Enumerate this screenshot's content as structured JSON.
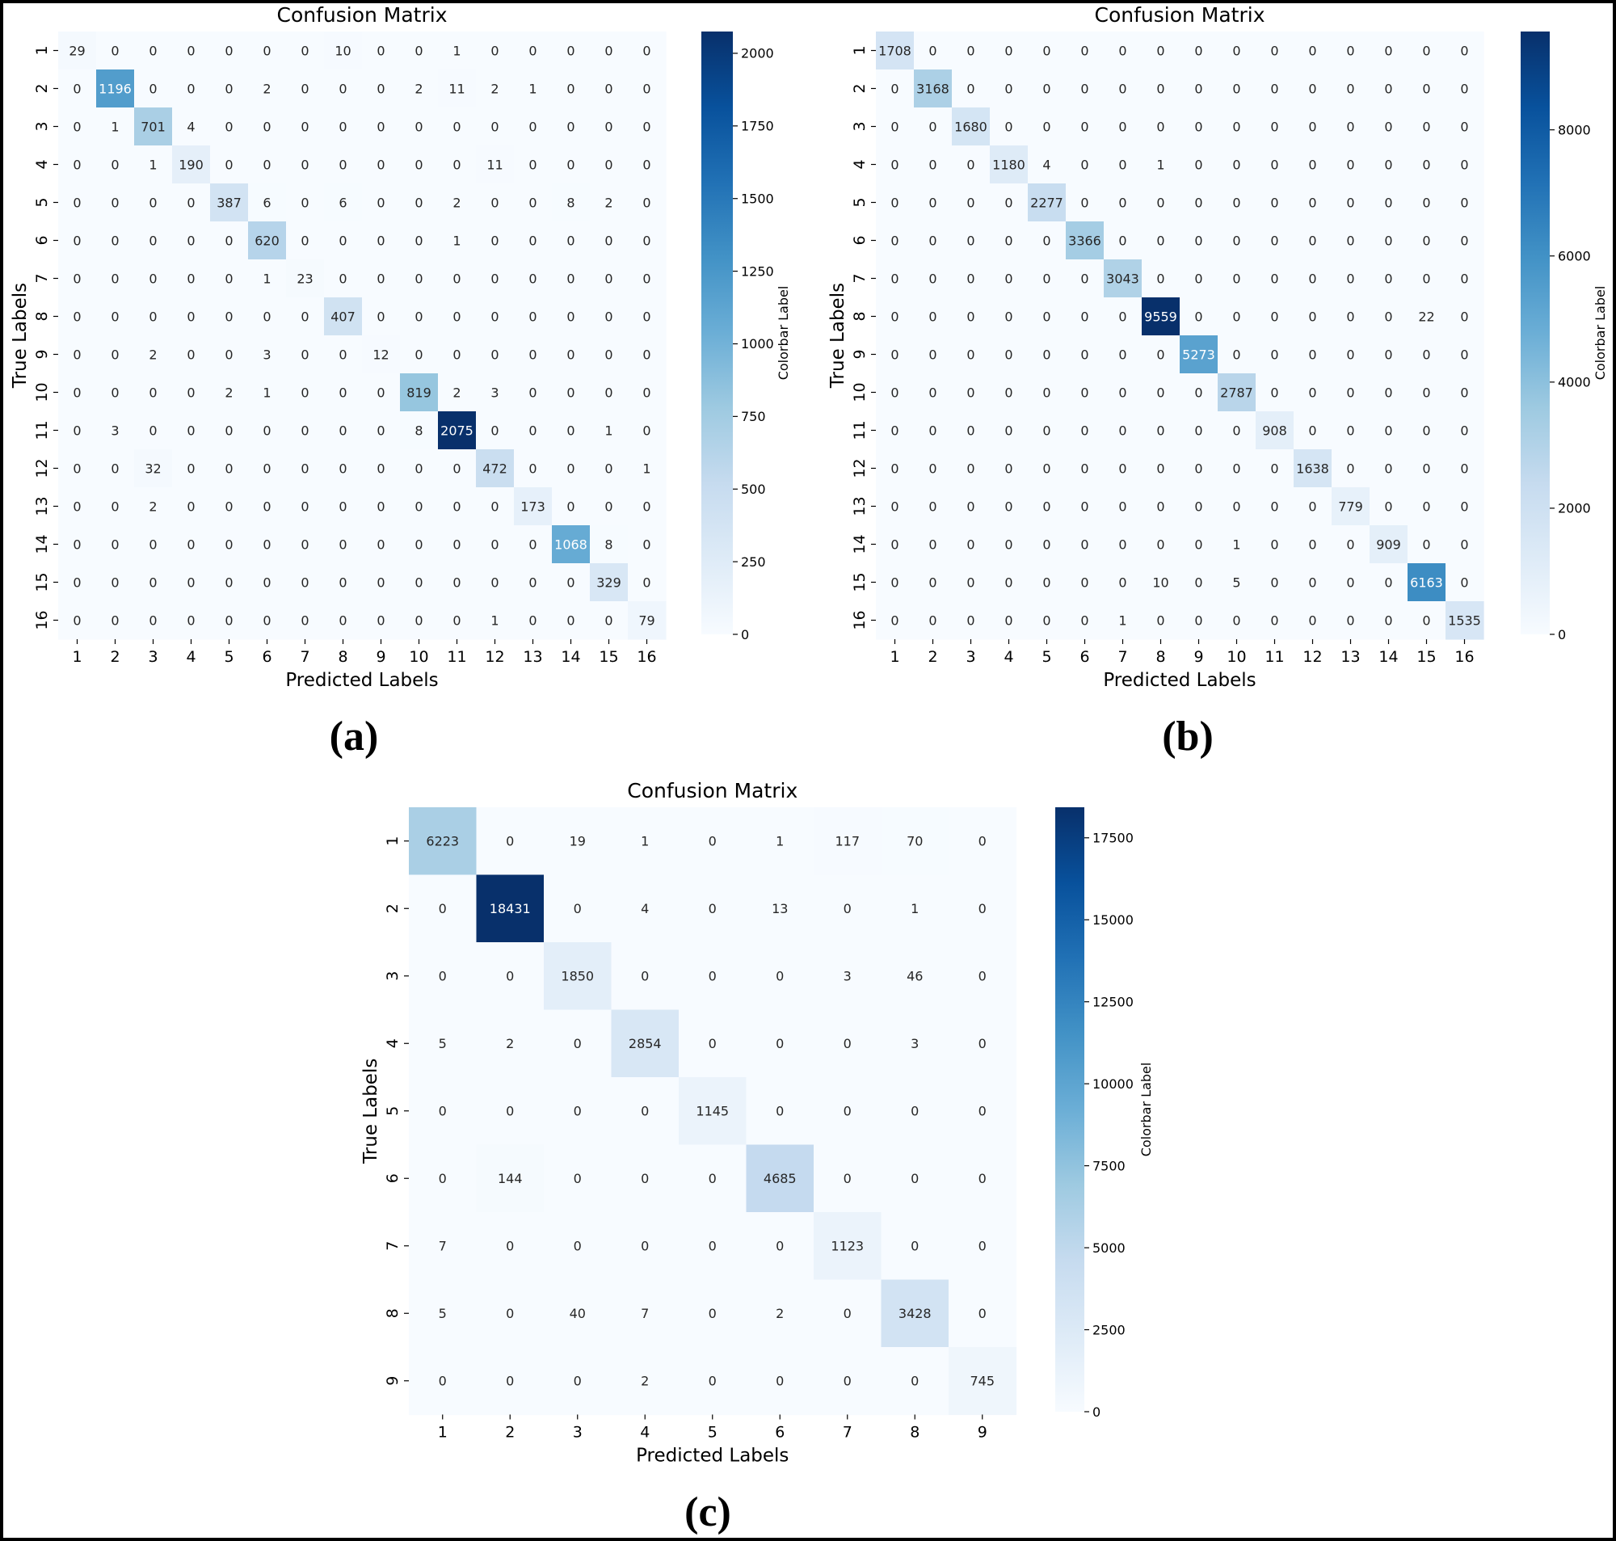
{
  "colors": {
    "cmap_low": "#f7fbff",
    "cmap_mid": "#6baed6",
    "cmap_high": "#08306b"
  },
  "chart_data": [
    {
      "type": "heatmap",
      "caption": "(a)",
      "title": "Confusion Matrix",
      "xlabel": "Predicted Labels",
      "ylabel": "True Labels",
      "colorbar_label": "Colorbar Label",
      "labels": [
        "1",
        "2",
        "3",
        "4",
        "5",
        "6",
        "7",
        "8",
        "9",
        "10",
        "11",
        "12",
        "13",
        "14",
        "15",
        "16"
      ],
      "vmax": 2075,
      "colorbar_ticks": [
        0,
        250,
        500,
        750,
        1000,
        1250,
        1500,
        1750,
        2000
      ],
      "matrix": [
        [
          29,
          0,
          0,
          0,
          0,
          0,
          0,
          10,
          0,
          0,
          1,
          0,
          0,
          0,
          0,
          0
        ],
        [
          0,
          1196,
          0,
          0,
          0,
          2,
          0,
          0,
          0,
          2,
          11,
          2,
          1,
          0,
          0,
          0
        ],
        [
          0,
          1,
          701,
          4,
          0,
          0,
          0,
          0,
          0,
          0,
          0,
          0,
          0,
          0,
          0,
          0
        ],
        [
          0,
          0,
          1,
          190,
          0,
          0,
          0,
          0,
          0,
          0,
          0,
          11,
          0,
          0,
          0,
          0
        ],
        [
          0,
          0,
          0,
          0,
          387,
          6,
          0,
          6,
          0,
          0,
          2,
          0,
          0,
          8,
          2,
          0
        ],
        [
          0,
          0,
          0,
          0,
          0,
          620,
          0,
          0,
          0,
          0,
          1,
          0,
          0,
          0,
          0,
          0
        ],
        [
          0,
          0,
          0,
          0,
          0,
          1,
          23,
          0,
          0,
          0,
          0,
          0,
          0,
          0,
          0,
          0
        ],
        [
          0,
          0,
          0,
          0,
          0,
          0,
          0,
          407,
          0,
          0,
          0,
          0,
          0,
          0,
          0,
          0
        ],
        [
          0,
          0,
          2,
          0,
          0,
          3,
          0,
          0,
          12,
          0,
          0,
          0,
          0,
          0,
          0,
          0
        ],
        [
          0,
          0,
          0,
          0,
          2,
          1,
          0,
          0,
          0,
          819,
          2,
          3,
          0,
          0,
          0,
          0
        ],
        [
          0,
          3,
          0,
          0,
          0,
          0,
          0,
          0,
          0,
          8,
          2075,
          0,
          0,
          0,
          1,
          0
        ],
        [
          0,
          0,
          32,
          0,
          0,
          0,
          0,
          0,
          0,
          0,
          0,
          472,
          0,
          0,
          0,
          1
        ],
        [
          0,
          0,
          2,
          0,
          0,
          0,
          0,
          0,
          0,
          0,
          0,
          0,
          173,
          0,
          0,
          0
        ],
        [
          0,
          0,
          0,
          0,
          0,
          0,
          0,
          0,
          0,
          0,
          0,
          0,
          0,
          1068,
          8,
          0
        ],
        [
          0,
          0,
          0,
          0,
          0,
          0,
          0,
          0,
          0,
          0,
          0,
          0,
          0,
          0,
          329,
          0
        ],
        [
          0,
          0,
          0,
          0,
          0,
          0,
          0,
          0,
          0,
          0,
          0,
          1,
          0,
          0,
          0,
          79
        ]
      ]
    },
    {
      "type": "heatmap",
      "caption": "(b)",
      "title": "Confusion Matrix",
      "xlabel": "Predicted Labels",
      "ylabel": "True Labels",
      "colorbar_label": "Colorbar Label",
      "labels": [
        "1",
        "2",
        "3",
        "4",
        "5",
        "6",
        "7",
        "8",
        "9",
        "10",
        "11",
        "12",
        "13",
        "14",
        "15",
        "16"
      ],
      "vmax": 9559,
      "colorbar_ticks": [
        0,
        2000,
        4000,
        6000,
        8000
      ],
      "matrix": [
        [
          1708,
          0,
          0,
          0,
          0,
          0,
          0,
          0,
          0,
          0,
          0,
          0,
          0,
          0,
          0,
          0
        ],
        [
          0,
          3168,
          0,
          0,
          0,
          0,
          0,
          0,
          0,
          0,
          0,
          0,
          0,
          0,
          0,
          0
        ],
        [
          0,
          0,
          1680,
          0,
          0,
          0,
          0,
          0,
          0,
          0,
          0,
          0,
          0,
          0,
          0,
          0
        ],
        [
          0,
          0,
          0,
          1180,
          4,
          0,
          0,
          1,
          0,
          0,
          0,
          0,
          0,
          0,
          0,
          0
        ],
        [
          0,
          0,
          0,
          0,
          2277,
          0,
          0,
          0,
          0,
          0,
          0,
          0,
          0,
          0,
          0,
          0
        ],
        [
          0,
          0,
          0,
          0,
          0,
          3366,
          0,
          0,
          0,
          0,
          0,
          0,
          0,
          0,
          0,
          0
        ],
        [
          0,
          0,
          0,
          0,
          0,
          0,
          3043,
          0,
          0,
          0,
          0,
          0,
          0,
          0,
          0,
          0
        ],
        [
          0,
          0,
          0,
          0,
          0,
          0,
          0,
          9559,
          0,
          0,
          0,
          0,
          0,
          0,
          22,
          0
        ],
        [
          0,
          0,
          0,
          0,
          0,
          0,
          0,
          0,
          5273,
          0,
          0,
          0,
          0,
          0,
          0,
          0
        ],
        [
          0,
          0,
          0,
          0,
          0,
          0,
          0,
          0,
          0,
          2787,
          0,
          0,
          0,
          0,
          0,
          0
        ],
        [
          0,
          0,
          0,
          0,
          0,
          0,
          0,
          0,
          0,
          0,
          908,
          0,
          0,
          0,
          0,
          0
        ],
        [
          0,
          0,
          0,
          0,
          0,
          0,
          0,
          0,
          0,
          0,
          0,
          1638,
          0,
          0,
          0,
          0
        ],
        [
          0,
          0,
          0,
          0,
          0,
          0,
          0,
          0,
          0,
          0,
          0,
          0,
          779,
          0,
          0,
          0
        ],
        [
          0,
          0,
          0,
          0,
          0,
          0,
          0,
          0,
          0,
          1,
          0,
          0,
          0,
          909,
          0,
          0
        ],
        [
          0,
          0,
          0,
          0,
          0,
          0,
          0,
          10,
          0,
          5,
          0,
          0,
          0,
          0,
          6163,
          0
        ],
        [
          0,
          0,
          0,
          0,
          0,
          0,
          1,
          0,
          0,
          0,
          0,
          0,
          0,
          0,
          0,
          1535
        ]
      ]
    },
    {
      "type": "heatmap",
      "caption": "(c)",
      "title": "Confusion Matrix",
      "xlabel": "Predicted Labels",
      "ylabel": "True Labels",
      "colorbar_label": "Colorbar Label",
      "labels": [
        "1",
        "2",
        "3",
        "4",
        "5",
        "6",
        "7",
        "8",
        "9"
      ],
      "vmax": 18431,
      "colorbar_ticks": [
        0,
        2500,
        5000,
        7500,
        10000,
        12500,
        15000,
        17500
      ],
      "matrix": [
        [
          6223,
          0,
          19,
          1,
          0,
          1,
          117,
          70,
          0
        ],
        [
          0,
          18431,
          0,
          4,
          0,
          13,
          0,
          1,
          0
        ],
        [
          0,
          0,
          1850,
          0,
          0,
          0,
          3,
          46,
          0
        ],
        [
          5,
          2,
          0,
          2854,
          0,
          0,
          0,
          3,
          0
        ],
        [
          0,
          0,
          0,
          0,
          1145,
          0,
          0,
          0,
          0
        ],
        [
          0,
          144,
          0,
          0,
          0,
          4685,
          0,
          0,
          0
        ],
        [
          7,
          0,
          0,
          0,
          0,
          0,
          1123,
          0,
          0
        ],
        [
          5,
          0,
          40,
          7,
          0,
          2,
          0,
          3428,
          0
        ],
        [
          0,
          0,
          0,
          2,
          0,
          0,
          0,
          0,
          745
        ]
      ]
    }
  ]
}
